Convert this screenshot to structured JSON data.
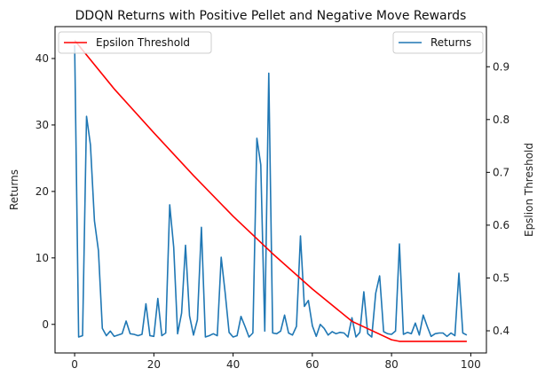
{
  "chart_data": {
    "type": "line",
    "title": "DDQN Returns with Positive Pellet and Negative Move Rewards",
    "xlabel": "",
    "ylabel_left": "Returns",
    "ylabel_right": "Epslion Threshold",
    "xlim": [
      -4.95,
      103.95
    ],
    "ylim_left": [
      -4.3,
      44.8
    ],
    "ylim_right": [
      0.358,
      0.976
    ],
    "x_ticks": [
      0,
      20,
      40,
      60,
      80,
      100
    ],
    "y_left_ticks": [
      0,
      10,
      20,
      30,
      40
    ],
    "y_right_ticks": [
      0.4,
      0.5,
      0.6,
      0.7,
      0.8,
      0.9
    ],
    "grid": false,
    "legends": [
      {
        "placement": "upper left",
        "entries": [
          "Epsilon Threshold"
        ]
      },
      {
        "placement": "upper right",
        "entries": [
          "Returns"
        ]
      }
    ],
    "series": [
      {
        "name": "Returns",
        "axis": "left",
        "color": "#1f77b4",
        "x": [
          0,
          1,
          2,
          3,
          4,
          5,
          6,
          7,
          8,
          9,
          10,
          11,
          12,
          13,
          14,
          15,
          16,
          17,
          18,
          19,
          20,
          21,
          22,
          23,
          24,
          25,
          26,
          27,
          28,
          29,
          30,
          31,
          32,
          33,
          34,
          35,
          36,
          37,
          38,
          39,
          40,
          41,
          42,
          43,
          44,
          45,
          46,
          47,
          48,
          49,
          50,
          51,
          52,
          53,
          54,
          55,
          56,
          57,
          58,
          59,
          60,
          61,
          62,
          63,
          64,
          65,
          66,
          67,
          68,
          69,
          70,
          71,
          72,
          73,
          74,
          75,
          76,
          77,
          78,
          79,
          80,
          81,
          82,
          83,
          84,
          85,
          86,
          87,
          88,
          89,
          90,
          91,
          92,
          93,
          94,
          95,
          96,
          97,
          98,
          99
        ],
        "values": [
          42.0,
          -1.9,
          -1.7,
          31.3,
          27.0,
          15.6,
          11.1,
          -0.6,
          -1.7,
          -1.0,
          -1.8,
          -1.6,
          -1.4,
          0.5,
          -1.4,
          -1.5,
          -1.7,
          -1.5,
          3.1,
          -1.7,
          -1.8,
          3.9,
          -1.7,
          -1.3,
          18.0,
          11.6,
          -1.4,
          1.7,
          11.9,
          1.3,
          -1.6,
          0.7,
          14.6,
          -1.9,
          -1.7,
          -1.4,
          -1.7,
          10.1,
          4.7,
          -1.2,
          -1.9,
          -1.7,
          1.2,
          -0.3,
          -1.9,
          -1.3,
          28.0,
          24.0,
          -1.0,
          37.8,
          -1.3,
          -1.4,
          -1.0,
          1.4,
          -1.3,
          -1.6,
          -0.3,
          13.3,
          2.7,
          3.6,
          -0.2,
          -1.8,
          0.0,
          -0.6,
          -1.6,
          -1.1,
          -1.4,
          -1.2,
          -1.3,
          -1.9,
          1.0,
          -1.9,
          -1.2,
          4.9,
          -1.4,
          -1.9,
          4.7,
          7.3,
          -1.1,
          -1.4,
          -1.5,
          -1.0,
          12.1,
          -1.5,
          -1.2,
          -1.4,
          0.2,
          -1.6,
          1.4,
          -0.3,
          -1.8,
          -1.4,
          -1.3,
          -1.3,
          -1.8,
          -1.3,
          -1.7,
          7.7,
          -1.3,
          -1.6
        ]
      },
      {
        "name": "Epsilon Threshold",
        "axis": "right",
        "color": "#ff0000",
        "x": [
          0,
          10,
          20,
          30,
          40,
          50,
          60,
          70,
          80,
          82,
          90,
          99
        ],
        "values": [
          0.95,
          0.858,
          0.775,
          0.694,
          0.617,
          0.546,
          0.479,
          0.418,
          0.383,
          0.38,
          0.38,
          0.38
        ]
      }
    ]
  }
}
